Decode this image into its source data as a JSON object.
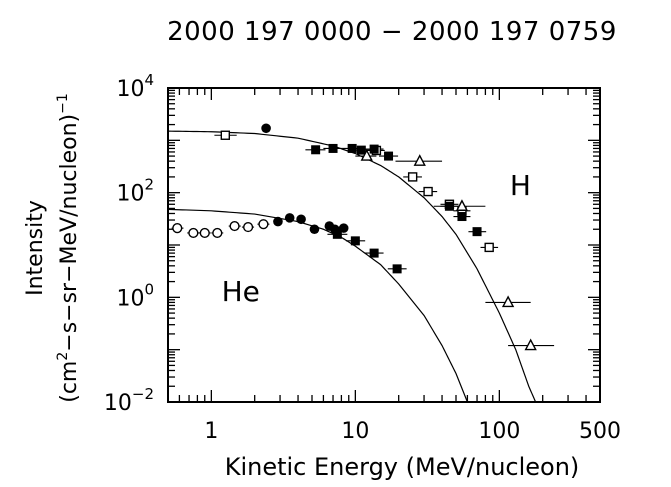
{
  "chart_data": {
    "type": "scatter",
    "title": "2000 197 0000 − 2000 197 0759",
    "xlabel": "Kinetic Energy (MeV/nucleon)",
    "ylabel": {
      "main": "Intensity",
      "units_prefix": "(cm",
      "units_sup1": "2",
      "units_mid": "−s−sr−MeV/nucleon)",
      "units_sup2": "−1"
    },
    "x_scale": "log",
    "y_scale": "log",
    "xlim": [
      0.5,
      500
    ],
    "ylim": [
      0.01,
      10000
    ],
    "x_tick_labels": [
      {
        "value": 1,
        "label": "1"
      },
      {
        "value": 10,
        "label": "10"
      },
      {
        "value": 100,
        "label": "100"
      },
      {
        "value": 500,
        "label": "500"
      }
    ],
    "y_tick_labels": [
      {
        "value": 10000,
        "base": "10",
        "exp": "4"
      },
      {
        "value": 100,
        "base": "10",
        "exp": "2"
      },
      {
        "value": 1,
        "base": "10",
        "exp": "0"
      },
      {
        "value": 0.01,
        "base": "10",
        "exp": "−2"
      }
    ],
    "annotations": [
      {
        "text": "H",
        "x": 140,
        "y": 90
      },
      {
        "text": "He",
        "x": 1.6,
        "y": 0.85
      }
    ],
    "series": [
      {
        "marker": "open-square",
        "species": "H",
        "points": [
          {
            "x": 1.25,
            "y": 1250,
            "xerr": [
              1.05,
              1.5
            ]
          },
          {
            "x": 14,
            "y": 640,
            "xerr": [
              12,
              16
            ]
          },
          {
            "x": 25,
            "y": 200,
            "xerr": [
              21.5,
              29
            ]
          },
          {
            "x": 32,
            "y": 105,
            "xerr": [
              27.5,
              37
            ]
          },
          {
            "x": 45,
            "y": 60,
            "xerr": [
              39,
              52
            ]
          },
          {
            "x": 55,
            "y": 45,
            "xerr": [
              48,
              63
            ]
          },
          {
            "x": 85,
            "y": 9,
            "xerr": [
              74,
              98
            ]
          }
        ]
      },
      {
        "marker": "filled-circle",
        "species": "H",
        "points": [
          {
            "x": 2.4,
            "y": 1700
          }
        ]
      },
      {
        "marker": "filled-square",
        "species": "H",
        "points": [
          {
            "x": 5.3,
            "y": 660,
            "xerr": [
              4.5,
              6.2
            ]
          },
          {
            "x": 7,
            "y": 700,
            "xerr": [
              6,
              8.2
            ]
          },
          {
            "x": 9.5,
            "y": 700,
            "xerr": [
              8.2,
              11
            ]
          },
          {
            "x": 11,
            "y": 650,
            "xerr": [
              9.5,
              12.8
            ]
          },
          {
            "x": 13.5,
            "y": 680,
            "xerr": [
              11.6,
              15.7
            ]
          },
          {
            "x": 17,
            "y": 500,
            "xerr": [
              14.6,
              19.8
            ]
          },
          {
            "x": 45,
            "y": 55,
            "xerr": [
              39,
              52
            ]
          },
          {
            "x": 55,
            "y": 35,
            "xerr": [
              48,
              63
            ]
          },
          {
            "x": 70,
            "y": 18,
            "xerr": [
              61,
              81
            ]
          }
        ]
      },
      {
        "marker": "open-triangle",
        "species": "H",
        "points": [
          {
            "x": 12,
            "y": 500,
            "xerr": [
              10,
              14
            ]
          },
          {
            "x": 28,
            "y": 400,
            "xerr": [
              19,
              40
            ]
          },
          {
            "x": 55,
            "y": 55,
            "xerr": [
              35,
              80
            ]
          },
          {
            "x": 115,
            "y": 0.8,
            "xerr": [
              80,
              165
            ]
          },
          {
            "x": 165,
            "y": 0.12,
            "xerr": [
              115,
              240
            ]
          }
        ]
      },
      {
        "marker": "open-circle",
        "species": "He",
        "points": [
          {
            "x": 0.58,
            "y": 21,
            "xerr": [
              0.53,
              0.64
            ]
          },
          {
            "x": 0.75,
            "y": 17,
            "xerr": [
              0.68,
              0.83
            ]
          },
          {
            "x": 0.9,
            "y": 17,
            "xerr": [
              0.82,
              0.99
            ]
          },
          {
            "x": 1.1,
            "y": 17,
            "xerr": [
              1.0,
              1.21
            ]
          },
          {
            "x": 1.45,
            "y": 23,
            "xerr": [
              1.32,
              1.6
            ]
          },
          {
            "x": 1.8,
            "y": 22,
            "xerr": [
              1.63,
              1.98
            ]
          },
          {
            "x": 2.3,
            "y": 25,
            "xerr": [
              2.09,
              2.53
            ]
          }
        ]
      },
      {
        "marker": "filled-circle",
        "species": "He",
        "points": [
          {
            "x": 2.9,
            "y": 28
          },
          {
            "x": 3.5,
            "y": 33
          },
          {
            "x": 4.2,
            "y": 31
          },
          {
            "x": 5.2,
            "y": 20
          },
          {
            "x": 6.6,
            "y": 23
          },
          {
            "x": 7.2,
            "y": 20
          },
          {
            "x": 8.3,
            "y": 21
          }
        ]
      },
      {
        "marker": "filled-square",
        "species": "He",
        "points": [
          {
            "x": 7.5,
            "y": 16,
            "xerr": [
              6.4,
              8.8
            ]
          },
          {
            "x": 10,
            "y": 12,
            "xerr": [
              8.6,
              11.7
            ]
          },
          {
            "x": 13.5,
            "y": 7,
            "xerr": [
              11.6,
              15.7
            ]
          },
          {
            "x": 19.5,
            "y": 3.5,
            "xerr": [
              16.8,
              22.7
            ]
          }
        ]
      }
    ],
    "fit_curves": [
      {
        "species": "H",
        "points": [
          [
            0.5,
            1500
          ],
          [
            1,
            1460
          ],
          [
            2,
            1350
          ],
          [
            4,
            1100
          ],
          [
            7,
            780
          ],
          [
            10,
            560
          ],
          [
            15,
            330
          ],
          [
            20,
            200
          ],
          [
            30,
            80
          ],
          [
            40,
            35
          ],
          [
            50,
            16
          ],
          [
            70,
            3.5
          ],
          [
            100,
            0.5
          ],
          [
            130,
            0.1
          ],
          [
            160,
            0.02
          ],
          [
            185,
            0.008
          ]
        ]
      },
      {
        "species": "He",
        "points": [
          [
            0.5,
            48
          ],
          [
            1,
            45
          ],
          [
            2,
            39
          ],
          [
            4,
            28
          ],
          [
            6,
            20
          ],
          [
            8,
            14
          ],
          [
            10,
            9.5
          ],
          [
            15,
            4.2
          ],
          [
            20,
            1.8
          ],
          [
            30,
            0.45
          ],
          [
            40,
            0.12
          ],
          [
            50,
            0.035
          ],
          [
            60,
            0.01
          ],
          [
            65,
            0.005
          ]
        ]
      }
    ],
    "grid": false,
    "legend": "none"
  }
}
